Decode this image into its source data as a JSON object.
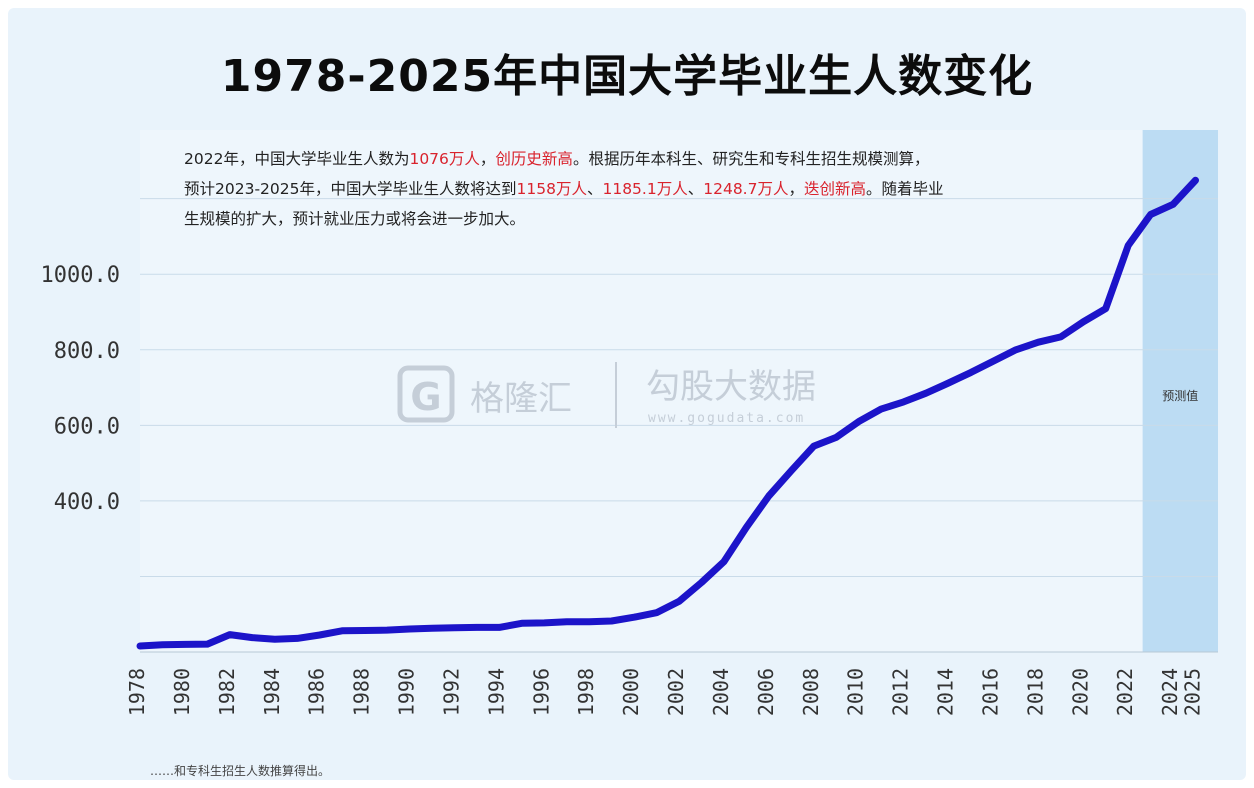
{
  "title": "1978-2025年中国大学毕业生人数变化",
  "annotation": {
    "line1_a": "2022年，中国大学毕业生人数为",
    "line1_red1": "1076万人",
    "line1_b": "，",
    "line1_red2": "创历史新高",
    "line1_c": "。根据历年本科生、研究生和专科生招生规模测算，",
    "line2_a": "预计2023-2025年，中国大学毕业生人数将达到",
    "line2_red1": "1158万人",
    "line2_b": "、",
    "line2_red2": "1185.1万人",
    "line2_c": "、",
    "line2_red3": "1248.7万人",
    "line2_d": "，",
    "line2_red4": "迭创新高",
    "line2_e": "。随着毕业",
    "line3": "生规模的扩大，预计就业压力或将会进一步加大。"
  },
  "projection_label": "预测值",
  "source_note": "……和专科生招生人数推算得出。",
  "watermark": {
    "logo_letter": "G",
    "logo_text": "格隆汇",
    "text": "勾股大数据",
    "url": "www.gogudata.com"
  },
  "colors": {
    "line": "#1c14c9",
    "background": "#e9f3fb",
    "projection_band": "#bcdcf3",
    "grid": "#c9dbe9",
    "highlight": "#d9232d"
  },
  "chart_data": {
    "type": "line",
    "title": "1978-2025年中国大学毕业生人数变化",
    "ylim": [
      0,
      1350
    ],
    "yticks": [
      {
        "value": 400,
        "label": "400.0"
      },
      {
        "value": 600,
        "label": "600.0"
      },
      {
        "value": 800,
        "label": "800.0"
      },
      {
        "value": 1000,
        "label": "1000.0"
      }
    ],
    "grid_values": [
      200,
      400,
      600,
      800,
      1000,
      1200
    ],
    "xlim": [
      1978,
      2026
    ],
    "xticks": [
      {
        "year": 1978,
        "label": "1978"
      },
      {
        "year": 1980,
        "label": "1980"
      },
      {
        "year": 1982,
        "label": "1982"
      },
      {
        "year": 1984,
        "label": "1984"
      },
      {
        "year": 1986,
        "label": "1986"
      },
      {
        "year": 1988,
        "label": "1988"
      },
      {
        "year": 1990,
        "label": "1990"
      },
      {
        "year": 1992,
        "label": "1992"
      },
      {
        "year": 1994,
        "label": "1994"
      },
      {
        "year": 1996,
        "label": "1996"
      },
      {
        "year": 1998,
        "label": "1998"
      },
      {
        "year": 2000,
        "label": "2000"
      },
      {
        "year": 2002,
        "label": "2002"
      },
      {
        "year": 2004,
        "label": "2004"
      },
      {
        "year": 2006,
        "label": "2006"
      },
      {
        "year": 2008,
        "label": "2008"
      },
      {
        "year": 2010,
        "label": "2010"
      },
      {
        "year": 2012,
        "label": "2012"
      },
      {
        "year": 2014,
        "label": "2014"
      },
      {
        "year": 2016,
        "label": "2016"
      },
      {
        "year": 2018,
        "label": "2018"
      },
      {
        "year": 2020,
        "label": "2020"
      },
      {
        "year": 2022,
        "label": "2022"
      },
      {
        "year": 2024,
        "label": "2024"
      },
      {
        "year": 2025,
        "label": "2025"
      }
    ],
    "projection_range": [
      2023,
      2026
    ],
    "series": [
      {
        "x": [
          1978,
          1979,
          1980,
          1981,
          1982,
          1983,
          1984,
          1985,
          1986,
          1987,
          1988,
          1989,
          1990,
          1991,
          1992,
          1993,
          1994,
          1995,
          1996,
          1997,
          1998,
          1999,
          2000,
          2001,
          2002,
          2003,
          2004,
          2005,
          2006,
          2007,
          2008,
          2009,
          2010,
          2011,
          2012,
          2013,
          2014,
          2015,
          2016,
          2017,
          2018,
          2019,
          2020,
          2021,
          2022,
          2023,
          2024,
          2025
        ],
        "values": [
          16,
          19,
          20,
          21,
          46,
          38,
          34,
          36,
          45,
          56,
          57,
          58,
          61,
          63,
          64,
          65,
          65,
          76,
          77,
          80,
          80,
          82,
          92,
          104,
          134,
          184,
          239,
          330,
          413,
          480,
          545,
          568,
          610,
          643,
          662,
          685,
          712,
          740,
          770,
          800,
          820,
          834,
          874,
          909,
          1076,
          1158,
          1185.1,
          1248.7
        ]
      }
    ]
  }
}
